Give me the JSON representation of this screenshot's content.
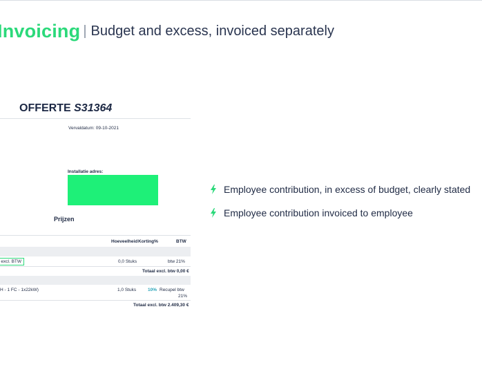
{
  "header": {
    "title_accent": "Invoicing",
    "separator": "|",
    "subtitle": "Budget and excess, invoiced separately"
  },
  "document": {
    "title_prefix": "OFFERTE",
    "title_number": "S31364",
    "expiry": "Vervaldatum: 09-10-2021",
    "install_address_label": "Installatie adres:",
    "prices_heading": "Prijzen",
    "columns": [
      "Hoeveelheid",
      "Korting%",
      "BTW"
    ],
    "line1": {
      "tag": "€ excl. BTW",
      "quantity": "0,0 Stuks",
      "btw": "btw 21%",
      "total": "Totaal excl. btw 0,00 €"
    },
    "line2": {
      "description": "H - 1 FC - 1x22kW)",
      "quantity": "1,0 Stuks",
      "discount": "10%",
      "btw_a": "Recupel btw",
      "btw_b": "21%",
      "total": "Totaal excl. btw 2.409,30 €"
    }
  },
  "bullets": [
    {
      "icon": "lightning-bolt-icon",
      "text": "Employee contribution, in excess of budget, clearly stated"
    },
    {
      "icon": "lightning-bolt-icon",
      "text": "Employee contribution invoiced to employee"
    }
  ],
  "colors": {
    "accent": "#2bd97a",
    "address_box": "#1ef078",
    "text_dark": "#1f2a44",
    "discount": "#27a3b8"
  }
}
